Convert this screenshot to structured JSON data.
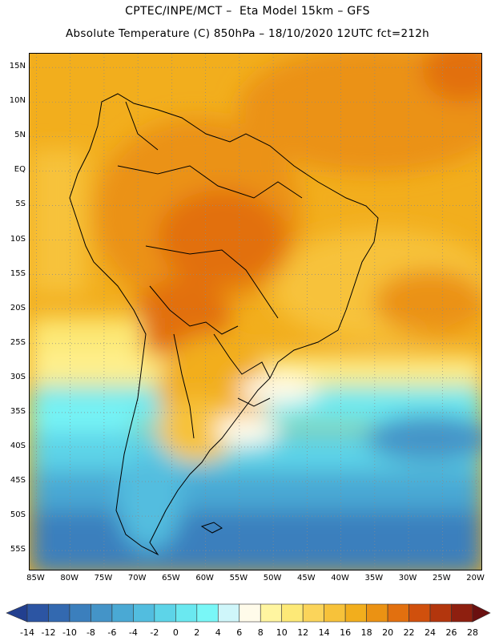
{
  "header": {
    "title_line1": "CPTEC/INPE/MCT –  Eta Model 15km – GFS",
    "title_line2": "Absolute Temperature (C) 850hPa – 18/10/2020 12UTC fct=212h"
  },
  "map": {
    "lat_labels": [
      "15N",
      "10N",
      "5N",
      "EQ",
      "5S",
      "10S",
      "15S",
      "20S",
      "25S",
      "30S",
      "35S",
      "40S",
      "45S",
      "50S",
      "55S"
    ],
    "lon_labels": [
      "85W",
      "80W",
      "75W",
      "70W",
      "65W",
      "60W",
      "55W",
      "50W",
      "45W",
      "40W",
      "35W",
      "30W",
      "25W",
      "20W"
    ],
    "extent": {
      "lon_min": -86,
      "lon_max": -19,
      "lat_min": -58,
      "lat_max": 17
    },
    "gridlines": "dotted",
    "coastline_color": "#000000"
  },
  "colorbar": {
    "labels": [
      "-14",
      "-12",
      "-10",
      "-8",
      "-6",
      "-4",
      "-2",
      "0",
      "2",
      "4",
      "6",
      "8",
      "10",
      "12",
      "14",
      "16",
      "18",
      "20",
      "22",
      "24",
      "26",
      "28"
    ],
    "colors": [
      "#223f8f",
      "#2c55a3",
      "#3369b0",
      "#3b7fbd",
      "#4494c8",
      "#4aa9d4",
      "#52bddf",
      "#5dd4e8",
      "#6ae8f0",
      "#79f7f7",
      "#cff6fa",
      "#fffbea",
      "#fff5a0",
      "#fde977",
      "#fbd45a",
      "#f7c23a",
      "#f2ae1d",
      "#eb9213",
      "#e2700f",
      "#d0500d",
      "#b3360d",
      "#8e1f0f",
      "#6a1010"
    ]
  }
}
